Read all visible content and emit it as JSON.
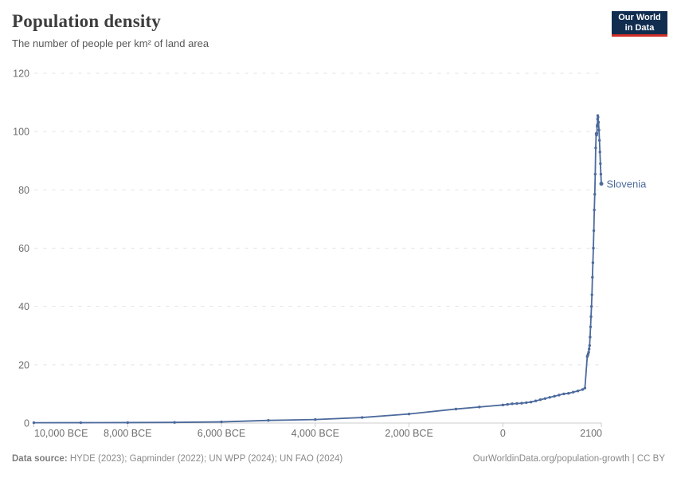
{
  "header": {
    "title": "Population density",
    "subtitle": "The number of people per km² of land area"
  },
  "logo": {
    "line1": "Our World",
    "line2": "in Data",
    "bg_color": "#102d50",
    "accent_color": "#cf2d26"
  },
  "footer": {
    "datasource_label": "Data source:",
    "datasource_text": " HYDE (2023); Gapminder (2022); UN WPP (2024); UN FAO (2024)",
    "attribution": "OurWorldinData.org/population-growth | CC BY"
  },
  "chart_data": {
    "type": "line",
    "title": "Population density",
    "subtitle": "The number of people per km² of land area",
    "entity": "Slovenia",
    "line_color": "#4c6a9c",
    "grid_color": "#e2e2e2",
    "axis_color": "#cccccc",
    "axis_text_color": "#6e6e6e",
    "grid_on": true,
    "xlim": [
      -10000,
      2100
    ],
    "ylim": [
      0,
      120
    ],
    "x_ticks": [
      {
        "year": -10000,
        "label": "10,000 BCE"
      },
      {
        "year": -8000,
        "label": "8,000 BCE"
      },
      {
        "year": -6000,
        "label": "6,000 BCE"
      },
      {
        "year": -4000,
        "label": "4,000 BCE"
      },
      {
        "year": -2000,
        "label": "2,000 BCE"
      },
      {
        "year": 0,
        "label": "0"
      },
      {
        "year": 2100,
        "label": "2100"
      }
    ],
    "y_ticks": [
      0,
      20,
      40,
      60,
      80,
      100,
      120
    ],
    "series": [
      {
        "name": "Slovenia",
        "color": "#4c6a9c",
        "points": [
          [
            -10000,
            0.1
          ],
          [
            -9000,
            0.12
          ],
          [
            -8000,
            0.15
          ],
          [
            -7000,
            0.22
          ],
          [
            -6000,
            0.4
          ],
          [
            -5000,
            0.9
          ],
          [
            -4000,
            1.2
          ],
          [
            -3000,
            1.9
          ],
          [
            -2000,
            3.1
          ],
          [
            -1000,
            4.8
          ],
          [
            -500,
            5.5
          ],
          [
            0,
            6.2
          ],
          [
            100,
            6.4
          ],
          [
            200,
            6.6
          ],
          [
            300,
            6.7
          ],
          [
            400,
            6.8
          ],
          [
            500,
            7.0
          ],
          [
            600,
            7.2
          ],
          [
            700,
            7.6
          ],
          [
            800,
            8.0
          ],
          [
            900,
            8.4
          ],
          [
            1000,
            8.8
          ],
          [
            1100,
            9.2
          ],
          [
            1200,
            9.6
          ],
          [
            1300,
            10.0
          ],
          [
            1400,
            10.2
          ],
          [
            1500,
            10.6
          ],
          [
            1600,
            11.0
          ],
          [
            1700,
            11.5
          ],
          [
            1750,
            12.0
          ],
          [
            1800,
            22.8
          ],
          [
            1810,
            23.2
          ],
          [
            1820,
            23.7
          ],
          [
            1830,
            24.3
          ],
          [
            1840,
            25.4
          ],
          [
            1850,
            26.6
          ],
          [
            1860,
            29.5
          ],
          [
            1870,
            33.0
          ],
          [
            1880,
            36.5
          ],
          [
            1890,
            40.0
          ],
          [
            1900,
            44.0
          ],
          [
            1910,
            50.0
          ],
          [
            1920,
            55.0
          ],
          [
            1930,
            60.0
          ],
          [
            1940,
            66.0
          ],
          [
            1950,
            73.1
          ],
          [
            1960,
            78.5
          ],
          [
            1970,
            85.4
          ],
          [
            1980,
            94.4
          ],
          [
            1990,
            99.3
          ],
          [
            1995,
            98.8
          ],
          [
            2000,
            98.8
          ],
          [
            2005,
            99.4
          ],
          [
            2010,
            101.8
          ],
          [
            2015,
            102.3
          ],
          [
            2020,
            104.3
          ],
          [
            2024,
            105.5
          ],
          [
            2030,
            104.9
          ],
          [
            2040,
            103.2
          ],
          [
            2050,
            100.5
          ],
          [
            2060,
            97.0
          ],
          [
            2070,
            93.0
          ],
          [
            2080,
            89.0
          ],
          [
            2090,
            85.4
          ],
          [
            2100,
            82.1
          ]
        ]
      }
    ]
  }
}
